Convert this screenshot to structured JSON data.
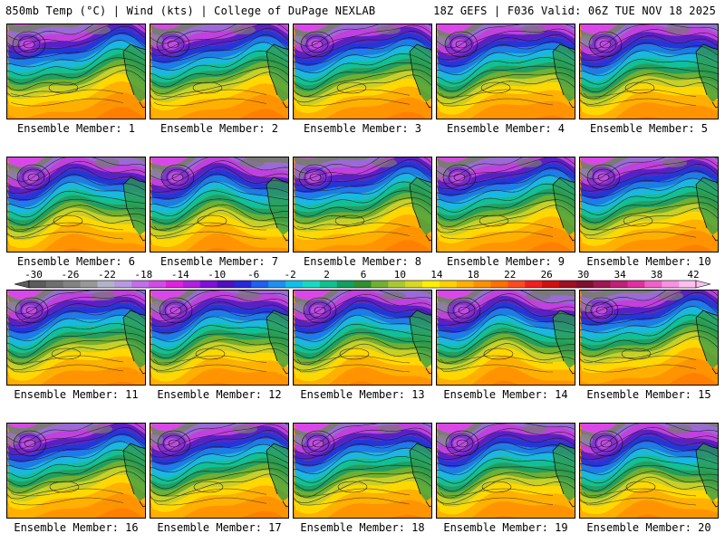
{
  "header": {
    "left": "850mb Temp (°C) | Wind (kts) | College of DuPage NEXLAB",
    "right": "18Z GEFS | F036 Valid: 06Z TUE NOV 18 2025"
  },
  "members": [
    {
      "label": "Ensemble Member: 1"
    },
    {
      "label": "Ensemble Member: 2"
    },
    {
      "label": "Ensemble Member: 3"
    },
    {
      "label": "Ensemble Member: 4"
    },
    {
      "label": "Ensemble Member: 5"
    },
    {
      "label": "Ensemble Member: 6"
    },
    {
      "label": "Ensemble Member: 7"
    },
    {
      "label": "Ensemble Member: 8"
    },
    {
      "label": "Ensemble Member: 9"
    },
    {
      "label": "Ensemble Member: 10"
    },
    {
      "label": "Ensemble Member: 11"
    },
    {
      "label": "Ensemble Member: 12"
    },
    {
      "label": "Ensemble Member: 13"
    },
    {
      "label": "Ensemble Member: 14"
    },
    {
      "label": "Ensemble Member: 15"
    },
    {
      "label": "Ensemble Member: 16"
    },
    {
      "label": "Ensemble Member: 17"
    },
    {
      "label": "Ensemble Member: 18"
    },
    {
      "label": "Ensemble Member: 19"
    },
    {
      "label": "Ensemble Member: 20"
    }
  ],
  "colorbar": {
    "tick_labels": [
      "-30",
      "-26",
      "-22",
      "-18",
      "-14",
      "-10",
      "-6",
      "-2",
      "2",
      "6",
      "10",
      "14",
      "18",
      "22",
      "26",
      "30",
      "34",
      "38",
      "42"
    ],
    "colors": [
      "#5c5c5c",
      "#6f6f6f",
      "#838383",
      "#989898",
      "#b3b3c8",
      "#b899e0",
      "#c070e8",
      "#d24be8",
      "#e020e0",
      "#b020e0",
      "#8010d8",
      "#5010c0",
      "#2828d8",
      "#2060f0",
      "#1c90f0",
      "#10c0e8",
      "#18d8c0",
      "#10c090",
      "#10a060",
      "#309030",
      "#70b030",
      "#a8c830",
      "#d8d820",
      "#fff000",
      "#ffd000",
      "#ffb000",
      "#ff9000",
      "#ff7000",
      "#ff4a20",
      "#f02020",
      "#d01010",
      "#a01020",
      "#801030",
      "#a01850",
      "#c02078",
      "#e030a0",
      "#f060c8",
      "#f890e0",
      "#fcc0f0"
    ]
  }
}
